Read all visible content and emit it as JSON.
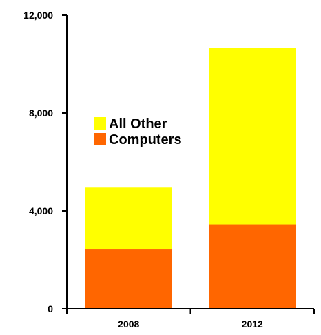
{
  "chart_data": {
    "type": "bar",
    "stacked": true,
    "categories": [
      "2008",
      "2012"
    ],
    "series": [
      {
        "name": "Computers",
        "values": [
          2450,
          3450
        ],
        "color": "#ff6600"
      },
      {
        "name": "All Other",
        "values": [
          2500,
          7200
        ],
        "color": "#ffff00"
      }
    ],
    "ylim": [
      0,
      12000
    ],
    "yticks": [
      0,
      4000,
      8000,
      12000
    ],
    "ytick_labels": [
      "0",
      "4,000",
      "8,000",
      "12,000"
    ],
    "legend": [
      {
        "label": "All Other",
        "color": "#ffff00"
      },
      {
        "label": "Computers",
        "color": "#ff6600"
      }
    ],
    "legend_placement": "upper-left",
    "grid": false,
    "title": "",
    "xlabel": "",
    "ylabel": ""
  }
}
